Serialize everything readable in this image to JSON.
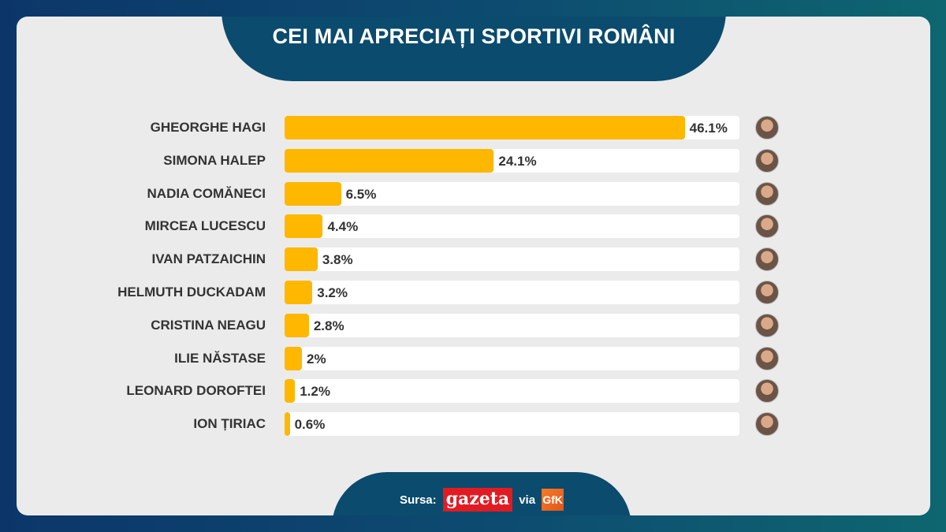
{
  "title": "CEI MAI APRECIAȚI SPORTIVI ROMÂNI",
  "chart_data": {
    "type": "bar",
    "orientation": "horizontal",
    "title": "CEI MAI APRECIAȚI SPORTIVI ROMÂNI",
    "categories": [
      "GHEORGHE HAGI",
      "SIMONA HALEP",
      "NADIA COMĂNECI",
      "MIRCEA LUCESCU",
      "IVAN PATZAICHIN",
      "HELMUTH DUCKADAM",
      "CRISTINA NEAGU",
      "ILIE NĂSTASE",
      "LEONARD DOROFTEI",
      "ION ȚIRIAC"
    ],
    "values": [
      46.1,
      24.1,
      6.5,
      4.4,
      3.8,
      3.2,
      2.8,
      2,
      1.2,
      0.6
    ],
    "labels": [
      "46.1%",
      "24.1%",
      "6.5%",
      "4.4%",
      "3.8%",
      "3.2%",
      "2.8%",
      "2%",
      "1.2%",
      "0.6%"
    ],
    "xlim": [
      0,
      52.4
    ],
    "unit": "%",
    "bar_color": "#ffb700",
    "track_color": "#ffffff",
    "grid": false
  },
  "footer": {
    "source_label": "Sursa:",
    "logo1": "gazeta",
    "via": "via",
    "logo2": "GfK"
  }
}
